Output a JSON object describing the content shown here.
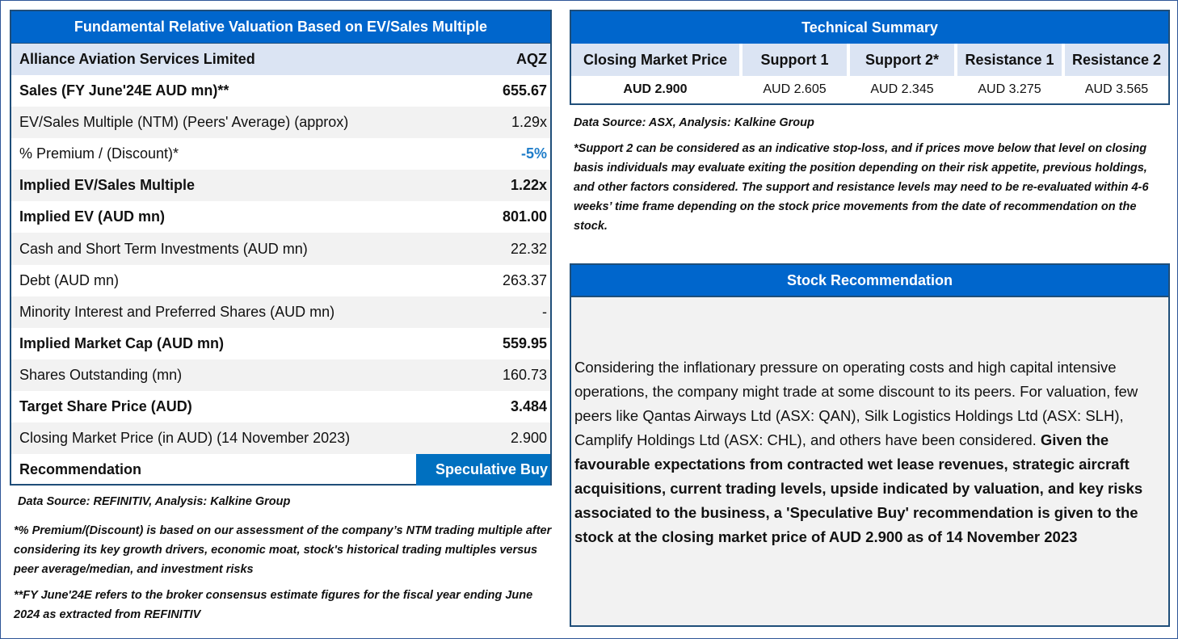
{
  "valuation": {
    "title": "Fundamental Relative Valuation Based on EV/Sales Multiple",
    "company": "Alliance Aviation Services Limited",
    "ticker": "AQZ",
    "rows": [
      {
        "label": "Sales (FY June'24E AUD mn)**",
        "value": "655.67"
      },
      {
        "label": "EV/Sales Multiple (NTM)  (Peers' Average) (approx)",
        "value": "1.29x"
      },
      {
        "label": "% Premium / (Discount)*",
        "value": "-5%"
      },
      {
        "label": "Implied EV/Sales Multiple",
        "value": "1.22x"
      },
      {
        "label": "Implied EV (AUD mn)",
        "value": "801.00"
      },
      {
        "label": "Cash and Short Term Investments (AUD mn)",
        "value": "22.32"
      },
      {
        "label": "Debt (AUD mn)",
        "value": "263.37"
      },
      {
        "label": "Minority Interest and Preferred Shares (AUD mn)",
        "value": "-"
      },
      {
        "label": "Implied Market Cap (AUD mn)",
        "value": "559.95"
      },
      {
        "label": "Shares Outstanding (mn)",
        "value": "160.73"
      },
      {
        "label": "Target Share Price (AUD)",
        "value": "3.484"
      },
      {
        "label": "Closing Market Price (in AUD) (14 November 2023)",
        "value": "2.900"
      },
      {
        "label": "Recommendation",
        "value": "Speculative Buy"
      }
    ],
    "source": "Data Source: REFINITIV, Analysis: Kalkine Group",
    "note_premium": "*% Premium/(Discount) is based on our assessment of the company’s NTM trading multiple after considering its key growth drivers, economic moat, stock's historical trading multiples versus peer average/median, and investment risks",
    "note_fy": "**FY June'24E refers to the broker consensus estimate figures for the fiscal year ending June 2024  as extracted from REFINITIV"
  },
  "technical": {
    "title": "Technical Summary",
    "headers": [
      "Closing Market Price",
      "Support 1",
      "Support 2*",
      "Resistance 1",
      "Resistance 2"
    ],
    "values": [
      "AUD 2.900",
      "AUD 2.605",
      "AUD 2.345",
      "AUD 3.275",
      "AUD 3.565"
    ],
    "source": "Data Source: ASX, Analysis: Kalkine Group",
    "note": "*Support 2 can be considered as an indicative stop-loss, and if prices move below that level on closing basis individuals may evaluate exiting the position depending on their risk appetite, previous holdings, and other factors considered. The support and resistance levels may need to be re-evaluated within 4-6 weeks’ time frame depending on the stock price movements from the date of recommendation on the stock."
  },
  "recommendation": {
    "title": "Stock Recommendation",
    "text_regular": "Considering the inflationary pressure on operating costs and high capital intensive operations, the company might trade at some discount to its peers. For valuation, few peers like Qantas Airways Ltd (ASX: QAN), Silk Logistics Holdings Ltd (ASX: SLH), Camplify Holdings Ltd (ASX: CHL), and others have been considered. ",
    "text_bold": "Given the favourable expectations from contracted wet lease revenues, strategic aircraft acquisitions, current trading levels, upside indicated by valuation, and key risks associated to the business, a 'Speculative Buy' recommendation is given to the stock at the closing market price of AUD 2.900 as of 14 November 2023"
  },
  "colors": {
    "header_blue": "#0066cc",
    "border_navy": "#1f4e79",
    "light_band": "#dbe4f3",
    "alt_row": "#f2f2f2",
    "discount_blue": "#1f7dc9"
  }
}
